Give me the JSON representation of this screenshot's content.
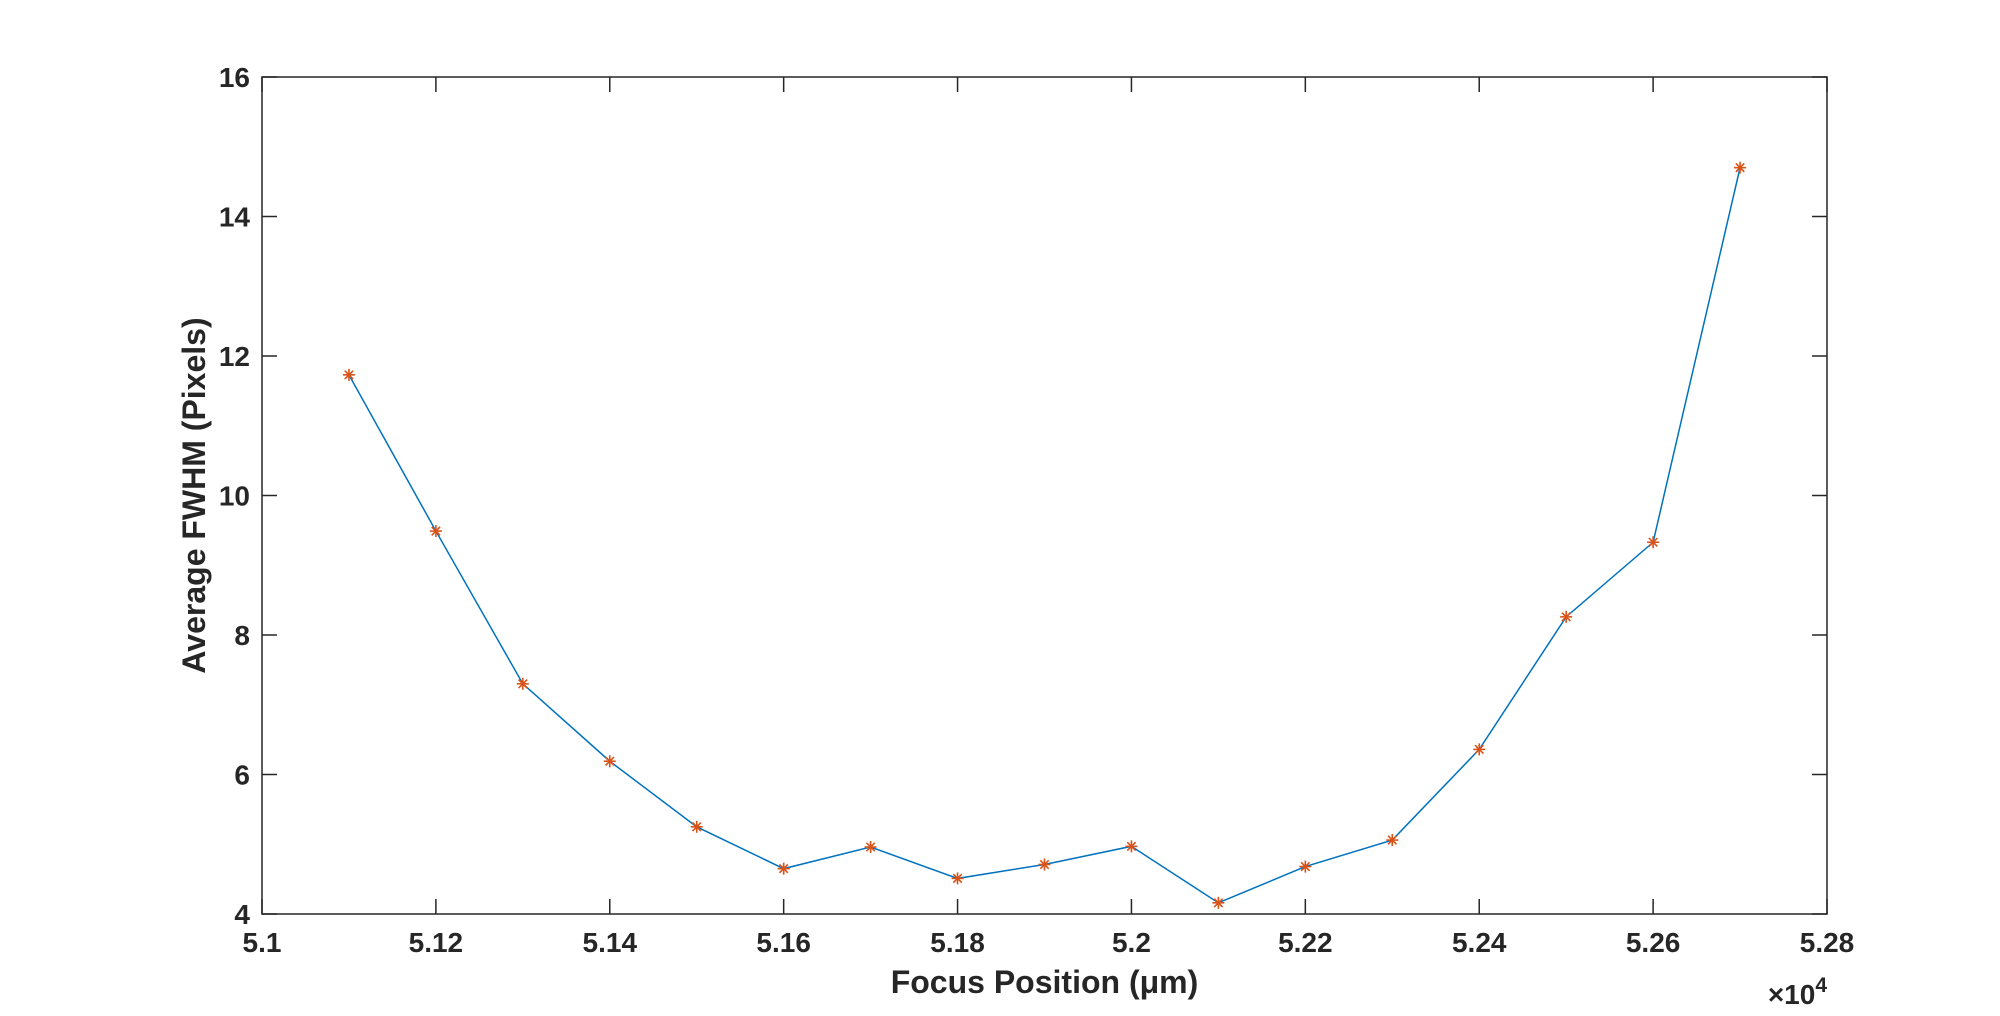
{
  "chart_data": {
    "type": "line",
    "title": "",
    "xlabel": "Focus Position (μm)",
    "ylabel": "Average FWHM (Pixels)",
    "x_multiplier_label": "×10",
    "x_multiplier_exponent": "4",
    "xlim": [
      5.1,
      5.28
    ],
    "ylim": [
      4,
      16
    ],
    "x_ticks": [
      5.1,
      5.12,
      5.14,
      5.16,
      5.18,
      5.2,
      5.22,
      5.24,
      5.26,
      5.28
    ],
    "x_tick_labels": [
      "5.1",
      "5.12",
      "5.14",
      "5.16",
      "5.18",
      "5.2",
      "5.22",
      "5.24",
      "5.26",
      "5.28"
    ],
    "y_ticks": [
      4,
      6,
      8,
      10,
      12,
      14,
      16
    ],
    "y_tick_labels": [
      "4",
      "6",
      "8",
      "10",
      "12",
      "14",
      "16"
    ],
    "grid": false,
    "line_color": "#0072BD",
    "marker_color": "#D95319",
    "marker": "asterisk",
    "x": [
      5.11,
      5.12,
      5.13,
      5.14,
      5.15,
      5.16,
      5.17,
      5.18,
      5.19,
      5.2,
      5.21,
      5.22,
      5.23,
      5.24,
      5.25,
      5.26,
      5.27
    ],
    "series": [
      {
        "values": [
          11.73,
          9.49,
          7.3,
          6.19,
          5.25,
          4.65,
          4.96,
          4.51,
          4.71,
          4.97,
          4.16,
          4.68,
          5.06,
          6.36,
          8.26,
          9.33,
          14.7
        ]
      }
    ]
  }
}
